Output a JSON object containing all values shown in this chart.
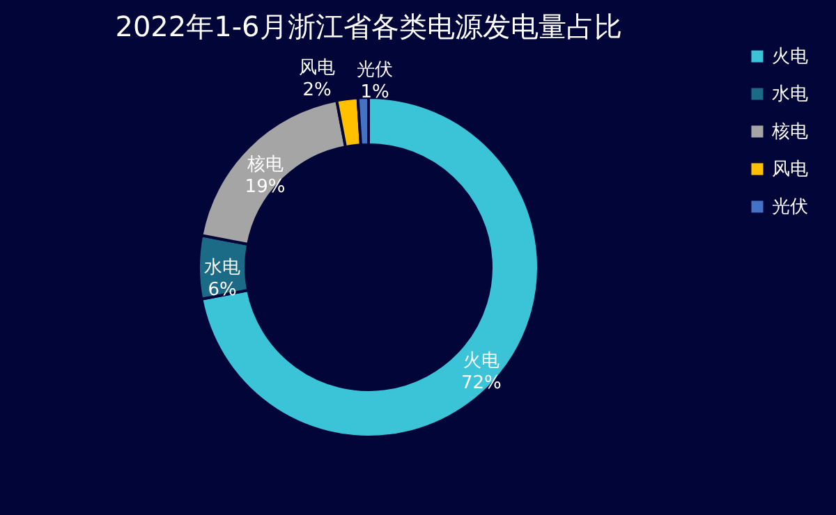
{
  "chart_data": {
    "type": "donut",
    "title": "2022年1-6月浙江省各类电源发电量占比",
    "categories": [
      "火电",
      "水电",
      "核电",
      "风电",
      "光伏"
    ],
    "values": [
      72,
      6,
      19,
      2,
      1
    ],
    "colors": [
      "#3bc4d8",
      "#1b6a86",
      "#a5a5a5",
      "#ffc000",
      "#4472c4"
    ],
    "value_labels": [
      "72%",
      "6%",
      "19%",
      "2%",
      "1%"
    ],
    "legend": "right"
  }
}
